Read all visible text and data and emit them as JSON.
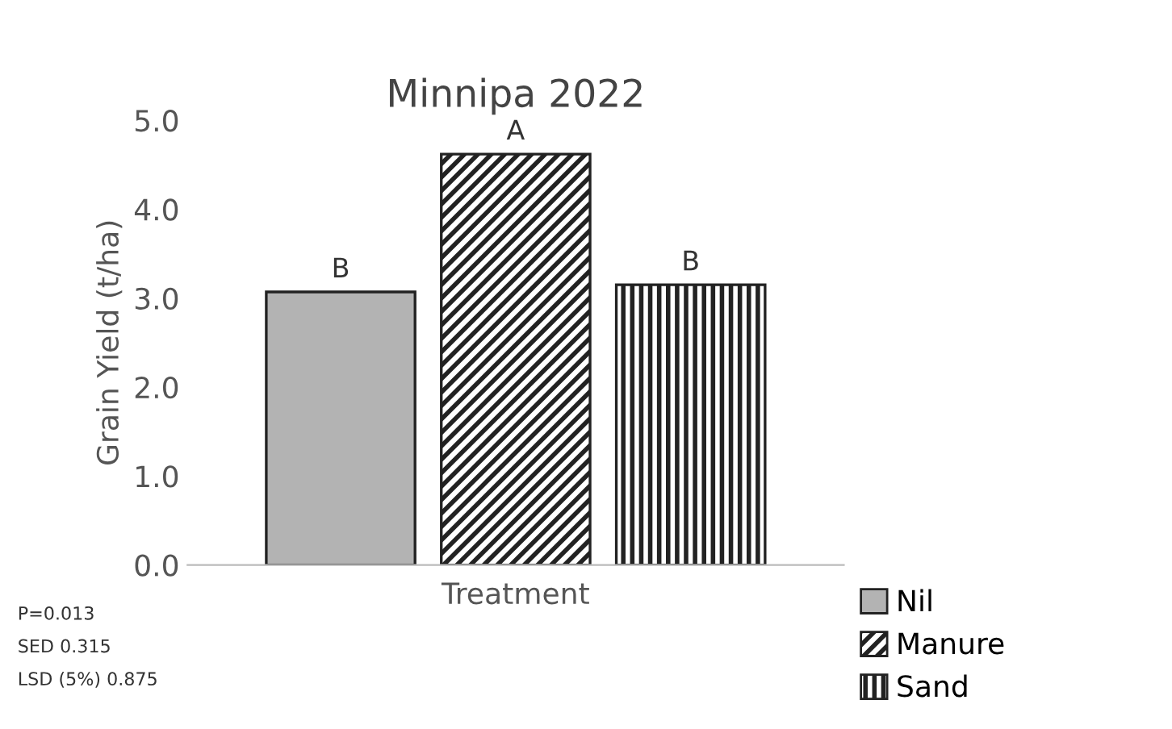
{
  "chart_data": {
    "type": "bar",
    "title": "Minnipa 2022",
    "xlabel": "Treatment",
    "ylabel": "Grain Yield (t/ha)",
    "categories": [
      null
    ],
    "series": [
      {
        "name": "Nil",
        "color": "#b3b3b3",
        "values": [
          3.07
        ],
        "value_labels": [
          "B"
        ]
      },
      {
        "name": "Manure",
        "color": "#222222",
        "values": [
          4.62
        ],
        "value_labels": [
          "A"
        ]
      },
      {
        "name": "Sand",
        "color": "#222222",
        "values": [
          3.15
        ],
        "value_labels": [
          "B"
        ]
      }
    ],
    "ylim": [
      0,
      5
    ],
    "yticks": [
      {
        "value": 0,
        "label": "0.0"
      },
      {
        "value": 1,
        "label": "1.0"
      },
      {
        "value": 2,
        "label": "2.0"
      },
      {
        "value": 3,
        "label": "3.0"
      },
      {
        "value": 4,
        "label": "4.0"
      },
      {
        "value": 5,
        "label": "5.0"
      }
    ],
    "grid": false,
    "legend": "bottom right",
    "annotations": [
      "P=0.013",
      "SED 0.315",
      "LSD (5%) 0.875"
    ]
  }
}
